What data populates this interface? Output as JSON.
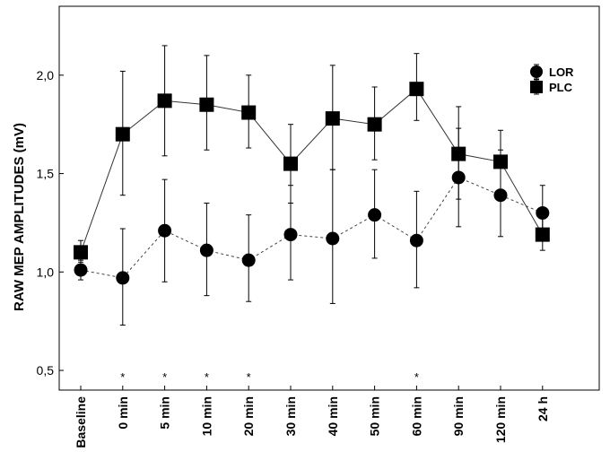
{
  "chart_data": {
    "type": "line",
    "title": "",
    "xlabel": "",
    "ylabel": "RAW  MEP AMPLITUDES (mV)",
    "ylim": [
      0.4,
      2.35
    ],
    "yticks": [
      0.5,
      1.0,
      1.5,
      2.0
    ],
    "ytick_labels": [
      "0,5",
      "1,0",
      "1,5",
      "2,0"
    ],
    "categories": [
      "Baseline",
      "0 min",
      "5 min",
      "10 min",
      "20 min",
      "30 min",
      "40 min",
      "50 min",
      "60 min",
      "90 min",
      "120 min",
      "24 h"
    ],
    "grid": false,
    "legend_position": "top-right",
    "series": [
      {
        "name": "LOR",
        "marker": "circle",
        "line_style": "dashed",
        "values": [
          1.01,
          0.97,
          1.21,
          1.11,
          1.06,
          1.19,
          1.17,
          1.29,
          1.16,
          1.48,
          1.39,
          1.3
        ],
        "err_low": [
          0.96,
          0.73,
          0.95,
          0.88,
          0.85,
          0.96,
          0.84,
          1.07,
          0.92,
          1.23,
          1.18,
          1.16
        ],
        "err_high": [
          1.06,
          1.22,
          1.47,
          1.35,
          1.29,
          1.44,
          1.52,
          1.52,
          1.41,
          1.73,
          1.62,
          1.44
        ]
      },
      {
        "name": "PLC",
        "marker": "square",
        "line_style": "solid",
        "values": [
          1.1,
          1.7,
          1.87,
          1.85,
          1.81,
          1.55,
          1.78,
          1.75,
          1.93,
          1.6,
          1.56,
          1.19
        ],
        "err_low": [
          1.05,
          1.39,
          1.59,
          1.62,
          1.63,
          1.35,
          1.52,
          1.57,
          1.77,
          1.37,
          1.4,
          1.11
        ],
        "err_high": [
          1.16,
          2.02,
          2.15,
          2.1,
          2.0,
          1.75,
          2.05,
          1.94,
          2.11,
          1.84,
          1.72,
          1.27
        ]
      }
    ],
    "significance_marks": [
      {
        "category": "0 min",
        "label": "*"
      },
      {
        "category": "5 min",
        "label": "*"
      },
      {
        "category": "10 min",
        "label": "*"
      },
      {
        "category": "20 min",
        "label": "*"
      },
      {
        "category": "60 min",
        "label": "*"
      }
    ]
  }
}
